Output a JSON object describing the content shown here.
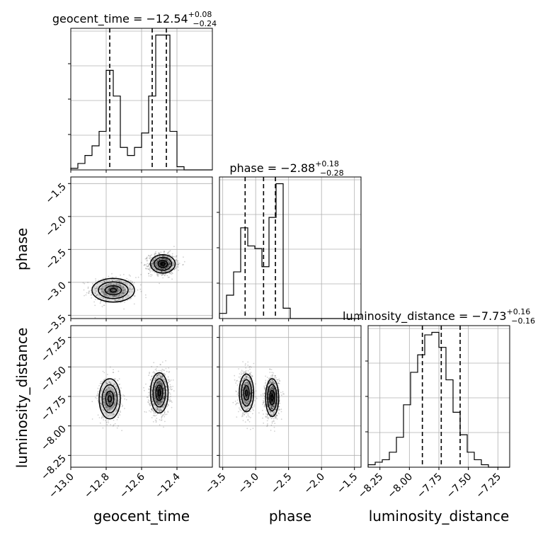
{
  "figure": {
    "title_geocent_prefix": "geocent_time = −12.54",
    "title_geocent_sup": "+0.08",
    "title_geocent_sub": "−0.24",
    "title_phase_prefix": "phase = −2.88",
    "title_phase_sup": "+0.18",
    "title_phase_sub": "−0.28",
    "title_lum_prefix": "luminosity_distance = −7.73",
    "title_lum_sup": "+0.16",
    "title_lum_sub": "−0.16"
  },
  "chart_data": {
    "type": "corner",
    "parameters": [
      "geocent_time",
      "phase",
      "luminosity_distance"
    ],
    "axis_labels": {
      "x": [
        "geocent_time",
        "phase",
        "luminosity_distance"
      ],
      "y": [
        "phase",
        "luminosity_distance"
      ]
    },
    "ranges": {
      "geocent_time": [
        -13.0,
        -12.2
      ],
      "phase": [
        -3.55,
        -1.4
      ],
      "luminosity_distance": [
        -8.35,
        -7.15
      ]
    },
    "ticks": {
      "geocent_time": [
        -13.0,
        -12.8,
        -12.6,
        -12.4
      ],
      "phase": [
        -3.5,
        -3.0,
        -2.5,
        -2.0,
        -1.5
      ],
      "luminosity_distance": [
        -8.25,
        -8.0,
        -7.75,
        -7.5,
        -7.25
      ]
    },
    "tick_labels": {
      "geocent_time": [
        "−13.0",
        "−12.8",
        "−12.6",
        "−12.4"
      ],
      "phase": [
        "−3.5",
        "−3.0",
        "−2.5",
        "−2.0",
        "−1.5"
      ],
      "phase_y": [
        "−1.5",
        "−2.0",
        "−2.5",
        "−3.0",
        "−3.5"
      ],
      "luminosity_distance": [
        "−8.25",
        "−8.00",
        "−7.75",
        "−7.50",
        "−7.25"
      ]
    },
    "marginals": {
      "geocent_time": {
        "bin_edges": [
          -13.0,
          -12.96,
          -12.92,
          -12.88,
          -12.84,
          -12.8,
          -12.76,
          -12.72,
          -12.68,
          -12.64,
          -12.6,
          -12.56,
          -12.52,
          -12.48,
          -12.44,
          -12.4,
          -12.36,
          -12.32,
          -12.28,
          -12.24,
          -12.2
        ],
        "counts": [
          1,
          4,
          9,
          15,
          24,
          62,
          46,
          14,
          9,
          14,
          23,
          46,
          84,
          84,
          24,
          2,
          0,
          0,
          0,
          0
        ],
        "quantiles": [
          -12.78,
          -12.54,
          -12.46
        ]
      },
      "phase": {
        "bin_edges": [
          -3.55,
          -3.4425,
          -3.335,
          -3.2275,
          -3.12,
          -3.0125,
          -2.905,
          -2.7975,
          -2.69,
          -2.5825,
          -2.475,
          -2.3675,
          -2.26,
          -2.1525,
          -2.045,
          -1.9375,
          -1.83,
          -1.7225,
          -1.615,
          -1.5075,
          -1.4
        ],
        "counts": [
          2,
          9,
          18,
          35,
          28,
          27,
          20,
          39,
          52,
          4,
          0,
          0,
          0,
          0,
          0,
          0,
          0,
          0,
          0,
          0
        ],
        "quantiles": [
          -3.16,
          -2.88,
          -2.7
        ]
      },
      "luminosity_distance": {
        "bin_edges": [
          -8.35,
          -8.29,
          -8.23,
          -8.17,
          -8.11,
          -8.05,
          -7.99,
          -7.93,
          -7.87,
          -7.81,
          -7.75,
          -7.69,
          -7.63,
          -7.57,
          -7.51,
          -7.45,
          -7.39,
          -7.33,
          -7.27,
          -7.21,
          -7.15
        ],
        "counts": [
          1,
          2,
          3,
          6,
          12,
          25,
          38,
          45,
          53,
          54,
          48,
          35,
          22,
          13,
          6,
          3,
          1,
          0,
          0,
          0
        ],
        "quantiles": [
          -7.89,
          -7.73,
          -7.57
        ]
      }
    },
    "joint": [
      {
        "x": "geocent_time",
        "y": "phase",
        "modes": [
          {
            "cx": -12.76,
            "cy": -3.12,
            "sx": 0.12,
            "sy": 0.18,
            "weight": 0.35
          },
          {
            "cx": -12.48,
            "cy": -2.72,
            "sx": 0.07,
            "sy": 0.14,
            "weight": 0.65
          }
        ]
      },
      {
        "x": "geocent_time",
        "y": "luminosity_distance",
        "modes": [
          {
            "cx": -12.78,
            "cy": -7.77,
            "sx": 0.06,
            "sy": 0.17,
            "weight": 0.35
          },
          {
            "cx": -12.5,
            "cy": -7.72,
            "sx": 0.05,
            "sy": 0.17,
            "weight": 0.65
          }
        ]
      },
      {
        "x": "phase",
        "y": "luminosity_distance",
        "modes": [
          {
            "cx": -3.14,
            "cy": -7.72,
            "sx": 0.11,
            "sy": 0.16,
            "weight": 0.38
          },
          {
            "cx": -2.75,
            "cy": -7.76,
            "sx": 0.1,
            "sy": 0.16,
            "weight": 0.62
          }
        ]
      }
    ],
    "grid": true,
    "line_color": "#000000",
    "density_color": "#000000",
    "grid_color": "#b0b0b0"
  }
}
